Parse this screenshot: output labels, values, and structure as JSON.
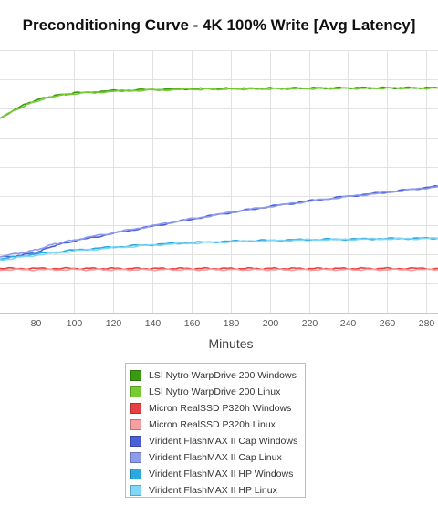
{
  "chart_data": {
    "type": "line",
    "title": "Preconditioning Curve - 4K 100% Write [Avg Latency]",
    "xlabel": "Minutes",
    "ylabel": "",
    "xlim": [
      62,
      286
    ],
    "ylim": [
      0,
      11
    ],
    "x_ticks": [
      80,
      100,
      120,
      140,
      160,
      180,
      200,
      220,
      240,
      260,
      280
    ],
    "grid": true,
    "legend_placement": "bottom",
    "series": [
      {
        "name": "LSI Nytro WarpDrive 200 Windows",
        "color": "#3a9a10",
        "x": [
          62,
          70,
          80,
          90,
          100,
          120,
          140,
          160,
          200,
          240,
          286
        ],
        "y": [
          8.15,
          8.55,
          8.9,
          9.1,
          9.2,
          9.3,
          9.35,
          9.38,
          9.4,
          9.42,
          9.42
        ]
      },
      {
        "name": "LSI Nytro WarpDrive 200 Linux",
        "color": "#77cc33",
        "x": [
          62,
          70,
          80,
          90,
          100,
          120,
          140,
          160,
          200,
          240,
          286
        ],
        "y": [
          8.12,
          8.5,
          8.85,
          9.08,
          9.18,
          9.28,
          9.33,
          9.36,
          9.38,
          9.4,
          9.41
        ]
      },
      {
        "name": "Micron RealSSD P320h Windows",
        "color": "#e84040",
        "x": [
          62,
          100,
          140,
          180,
          220,
          260,
          286
        ],
        "y": [
          1.85,
          1.85,
          1.85,
          1.85,
          1.85,
          1.85,
          1.85
        ]
      },
      {
        "name": "Micron RealSSD P320h Linux",
        "color": "#f4a0a0",
        "x": [
          62,
          100,
          140,
          180,
          220,
          260,
          286
        ],
        "y": [
          1.8,
          1.8,
          1.8,
          1.8,
          1.8,
          1.8,
          1.8
        ]
      },
      {
        "name": "Virident FlashMAX II Cap Windows",
        "color": "#4a5fd8",
        "x": [
          62,
          70,
          80,
          90,
          100,
          120,
          140,
          160,
          180,
          200,
          220,
          240,
          260,
          286
        ],
        "y": [
          2.3,
          2.38,
          2.5,
          2.82,
          3.0,
          3.32,
          3.62,
          3.92,
          4.2,
          4.45,
          4.68,
          4.88,
          5.05,
          5.3
        ]
      },
      {
        "name": "Virident FlashMAX II Cap Linux",
        "color": "#8e9cf0",
        "x": [
          62,
          70,
          80,
          90,
          100,
          120,
          140,
          160,
          180,
          200,
          220,
          240,
          260,
          286
        ],
        "y": [
          2.35,
          2.45,
          2.62,
          2.88,
          3.05,
          3.35,
          3.64,
          3.93,
          4.2,
          4.45,
          4.67,
          4.87,
          5.04,
          5.28
        ]
      },
      {
        "name": "Virident FlashMAX II HP Windows",
        "color": "#2aa8e0",
        "x": [
          62,
          80,
          100,
          120,
          140,
          160,
          180,
          200,
          220,
          240,
          260,
          286
        ],
        "y": [
          2.25,
          2.45,
          2.62,
          2.75,
          2.85,
          2.93,
          2.99,
          3.03,
          3.06,
          3.08,
          3.1,
          3.12
        ]
      },
      {
        "name": "Virident FlashMAX II HP Linux",
        "color": "#7fd8f8",
        "x": [
          62,
          80,
          100,
          120,
          140,
          160,
          180,
          200,
          220,
          240,
          260,
          286
        ],
        "y": [
          2.2,
          2.4,
          2.58,
          2.72,
          2.83,
          2.91,
          2.97,
          3.01,
          3.05,
          3.07,
          3.09,
          3.11
        ]
      }
    ]
  }
}
